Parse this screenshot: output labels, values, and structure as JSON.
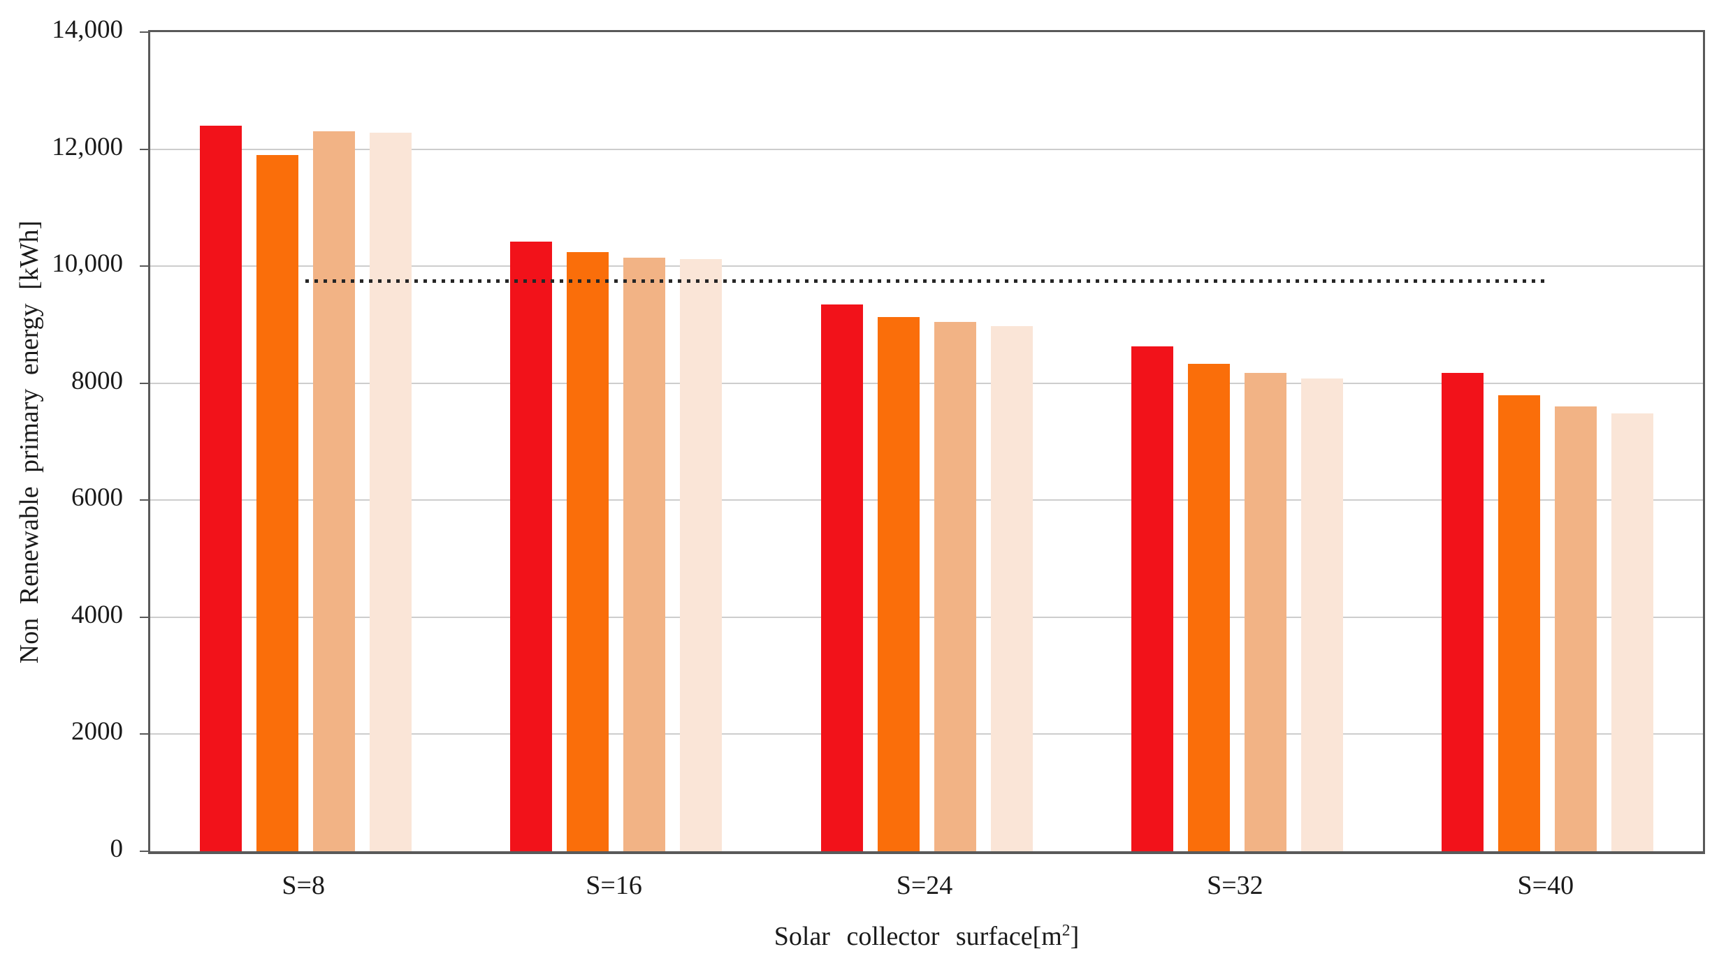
{
  "chart_data": {
    "type": "bar",
    "title": "",
    "categories": [
      "S=8",
      "S=16",
      "S=24",
      "S=32",
      "S=40"
    ],
    "series": [
      {
        "name": "red",
        "color": "#F2121A",
        "values": [
          12400,
          10420,
          9340,
          8630,
          8170
        ]
      },
      {
        "name": "orange",
        "color": "#FA6E0A",
        "values": [
          11900,
          10240,
          9130,
          8330,
          7790
        ]
      },
      {
        "name": "light-orange",
        "color": "#F2B385",
        "values": [
          12300,
          10150,
          9050,
          8170,
          7600
        ]
      },
      {
        "name": "pale-peach",
        "color": "#FAE5D7",
        "values": [
          12280,
          10120,
          8980,
          8080,
          7480
        ]
      }
    ],
    "baseline": {
      "value": 9750,
      "style": "dotted",
      "color": "#262626",
      "from_category": "S=8",
      "to_category": "S=40"
    },
    "ylabel": "Non Renewable primary energy [kWh]",
    "xlabel_main": "Solar collector surface[m",
    "xlabel_sup": "2",
    "xlabel_close": "]",
    "ylim": [
      0,
      14000
    ],
    "ytick_step": 2000,
    "ytick_labels": [
      "0",
      "2000",
      "4000",
      "6000",
      "8000",
      "10,000",
      "12,000",
      "14,000"
    ],
    "grid": true,
    "legend": "none",
    "colors": {
      "axis": "#595959",
      "gridline": "#CDCDCD",
      "text": "#1A1A1A",
      "background": "#FFFFFF"
    }
  }
}
